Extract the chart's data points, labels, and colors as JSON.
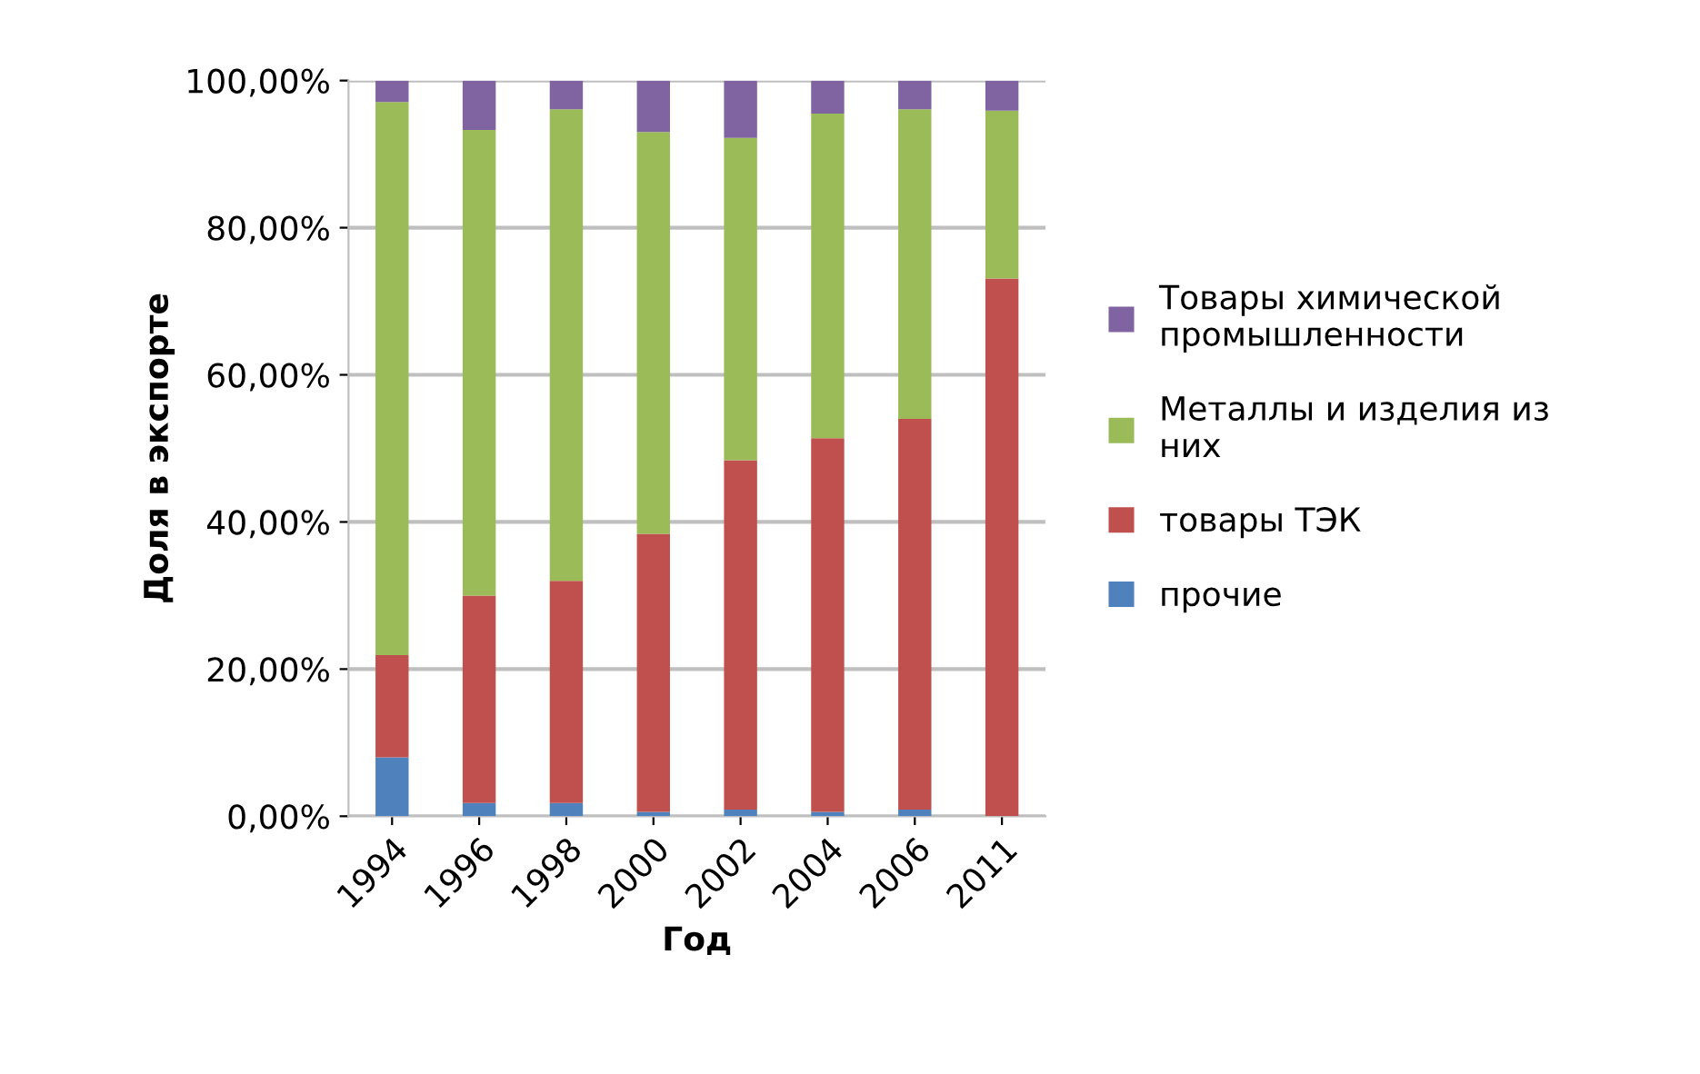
{
  "chart_data": {
    "type": "bar",
    "stacked": true,
    "xlabel": "Год",
    "ylabel": "Доля в экспорте",
    "categories": [
      "1994",
      "1996",
      "1998",
      "2000",
      "2002",
      "2004",
      "2006",
      "2011"
    ],
    "series": [
      {
        "name": "прочие",
        "color": "#4f81bd",
        "values": [
          8.0,
          1.8,
          1.8,
          0.6,
          0.9,
          0.6,
          0.9,
          0
        ]
      },
      {
        "name": "товары ТЭК",
        "color": "#c0504d",
        "values": [
          13.9,
          28.2,
          30.2,
          37.8,
          47.5,
          50.8,
          53.1,
          73.1
        ]
      },
      {
        "name": "Металлы и изделия из них",
        "color": "#9bbb59",
        "values": [
          75.2,
          63.3,
          64.1,
          54.6,
          43.8,
          44.1,
          42.1,
          22.8
        ]
      },
      {
        "name": "Товары химической промышленности",
        "color": "#8064a2",
        "values": [
          2.9,
          6.7,
          3.9,
          7.0,
          7.8,
          4.5,
          3.9,
          4.1
        ]
      }
    ],
    "ylim": [
      0,
      100
    ],
    "yticks": [
      {
        "value": 0,
        "label": "0,00%"
      },
      {
        "value": 20,
        "label": "20,00%"
      },
      {
        "value": 40,
        "label": "40,00%"
      },
      {
        "value": 60,
        "label": "60,00%"
      },
      {
        "value": 80,
        "label": "80,00%"
      },
      {
        "value": 100,
        "label": "100,00%"
      }
    ],
    "grid": "y",
    "legend": "right"
  }
}
